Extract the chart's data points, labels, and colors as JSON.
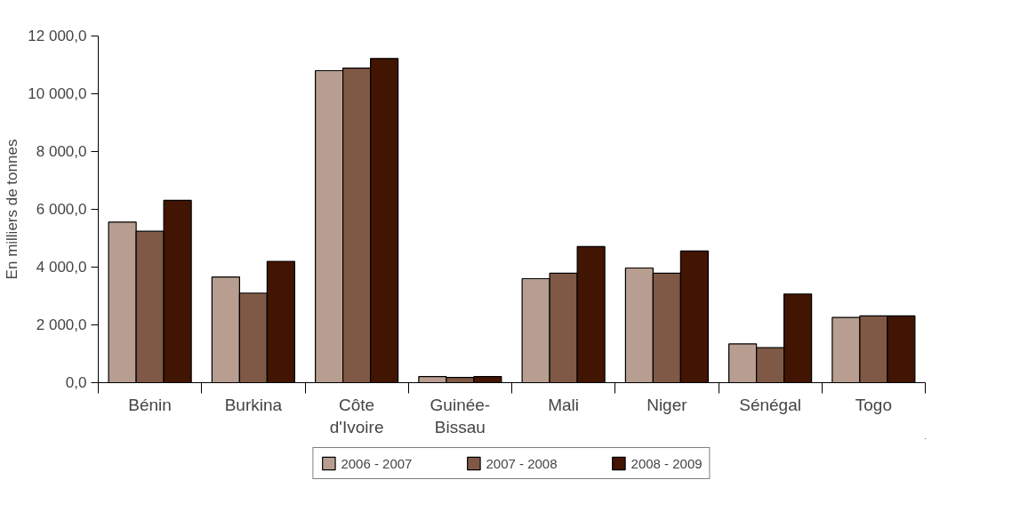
{
  "chart_data": {
    "type": "bar",
    "ylabel": "En milliers de tonnes",
    "categories": [
      "Bénin",
      "Burkina",
      "Côte d'Ivoire",
      "Guinée-Bissau",
      "Mali",
      "Niger",
      "Sénégal",
      "Togo"
    ],
    "series": [
      {
        "name": "2006 - 2007",
        "color": "#b89e90",
        "values": [
          5560,
          3660,
          10800,
          210,
          3600,
          3970,
          1340,
          2260
        ]
      },
      {
        "name": "2007 - 2008",
        "color": "#7f5946",
        "values": [
          5240,
          3100,
          10890,
          180,
          3790,
          3790,
          1210,
          2310
        ]
      },
      {
        "name": "2008 - 2009",
        "color": "#421402",
        "values": [
          6310,
          4200,
          11220,
          210,
          4710,
          4560,
          3070,
          2310
        ]
      }
    ],
    "ylim": [
      0,
      12000
    ],
    "yticks": [
      {
        "value": 0,
        "label": "0,0"
      },
      {
        "value": 2000,
        "label": "2 000,0"
      },
      {
        "value": 4000,
        "label": "4 000,0"
      },
      {
        "value": 6000,
        "label": "6 000,0"
      },
      {
        "value": 8000,
        "label": "8 000,0"
      },
      {
        "value": 10000,
        "label": "10 000,0"
      },
      {
        "value": 12000,
        "label": "12 000,0"
      }
    ],
    "grid": false,
    "legend": "bottom"
  }
}
